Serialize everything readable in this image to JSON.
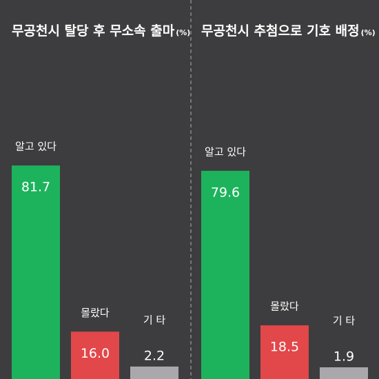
{
  "chart_data": [
    {
      "type": "bar",
      "title": "무공천시 탈당 후 무소속 출마",
      "unit": "(%)",
      "categories": [
        "알고 있다",
        "몰랐다",
        "기 타"
      ],
      "values": [
        81.7,
        16.0,
        2.2
      ],
      "value_labels": [
        "81.7",
        "16.0",
        "2.2"
      ],
      "colors": [
        "#1db35c",
        "#e2474a",
        "#a9a9ab"
      ]
    },
    {
      "type": "bar",
      "title": "무공천시 추첨으로 기호 배정",
      "unit": "(%)",
      "categories": [
        "알고 있다",
        "몰랐다",
        "기 타"
      ],
      "values": [
        79.6,
        18.5,
        1.9
      ],
      "value_labels": [
        "79.6",
        "18.5",
        "1.9"
      ],
      "colors": [
        "#1db35c",
        "#e2474a",
        "#a9a9ab"
      ]
    }
  ]
}
